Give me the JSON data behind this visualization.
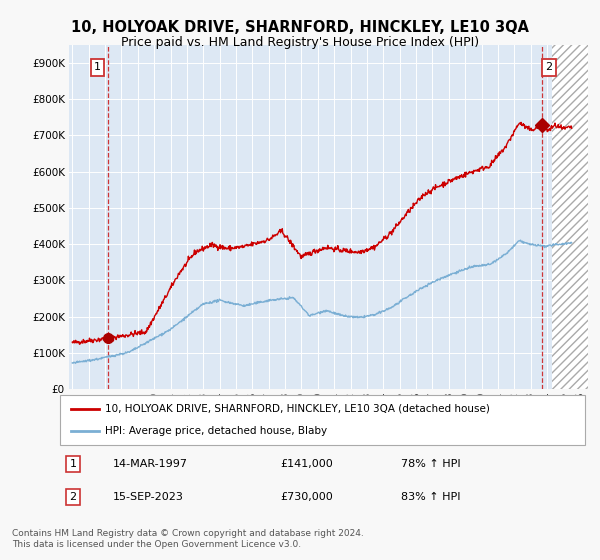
{
  "title": "10, HOLYOAK DRIVE, SHARNFORD, HINCKLEY, LE10 3QA",
  "subtitle": "Price paid vs. HM Land Registry's House Price Index (HPI)",
  "ytick_values": [
    0,
    100000,
    200000,
    300000,
    400000,
    500000,
    600000,
    700000,
    800000,
    900000
  ],
  "ylim": [
    0,
    950000
  ],
  "xlim_start": 1994.8,
  "xlim_end": 2026.5,
  "xtick_years": [
    1995,
    1996,
    1997,
    1998,
    1999,
    2000,
    2001,
    2002,
    2003,
    2004,
    2005,
    2006,
    2007,
    2008,
    2009,
    2010,
    2011,
    2012,
    2013,
    2014,
    2015,
    2016,
    2017,
    2018,
    2019,
    2020,
    2021,
    2022,
    2023,
    2024,
    2025,
    2026
  ],
  "bg_color": "#dde8f4",
  "grid_color": "#c8d8ea",
  "hatch_start": 2024.3,
  "sale1_x": 1997.2,
  "sale1_y": 141000,
  "sale1_label": "1",
  "sale1_date": "14-MAR-1997",
  "sale1_price": "£141,000",
  "sale1_hpi": "78% ↑ HPI",
  "sale2_x": 2023.71,
  "sale2_y": 730000,
  "sale2_label": "2",
  "sale2_date": "15-SEP-2023",
  "sale2_price": "£730,000",
  "sale2_hpi": "83% ↑ HPI",
  "red_line_color": "#cc0000",
  "blue_line_color": "#7bafd4",
  "marker_color": "#aa0000",
  "vline_color": "#cc2222",
  "legend_label_red": "10, HOLYOAK DRIVE, SHARNFORD, HINCKLEY, LE10 3QA (detached house)",
  "legend_label_blue": "HPI: Average price, detached house, Blaby",
  "footer": "Contains HM Land Registry data © Crown copyright and database right 2024.\nThis data is licensed under the Open Government Licence v3.0.",
  "title_fontsize": 10.5,
  "subtitle_fontsize": 9,
  "tick_fontsize": 7.5,
  "legend_fontsize": 7.5,
  "footer_fontsize": 6.5,
  "fig_bg": "#f8f8f8"
}
